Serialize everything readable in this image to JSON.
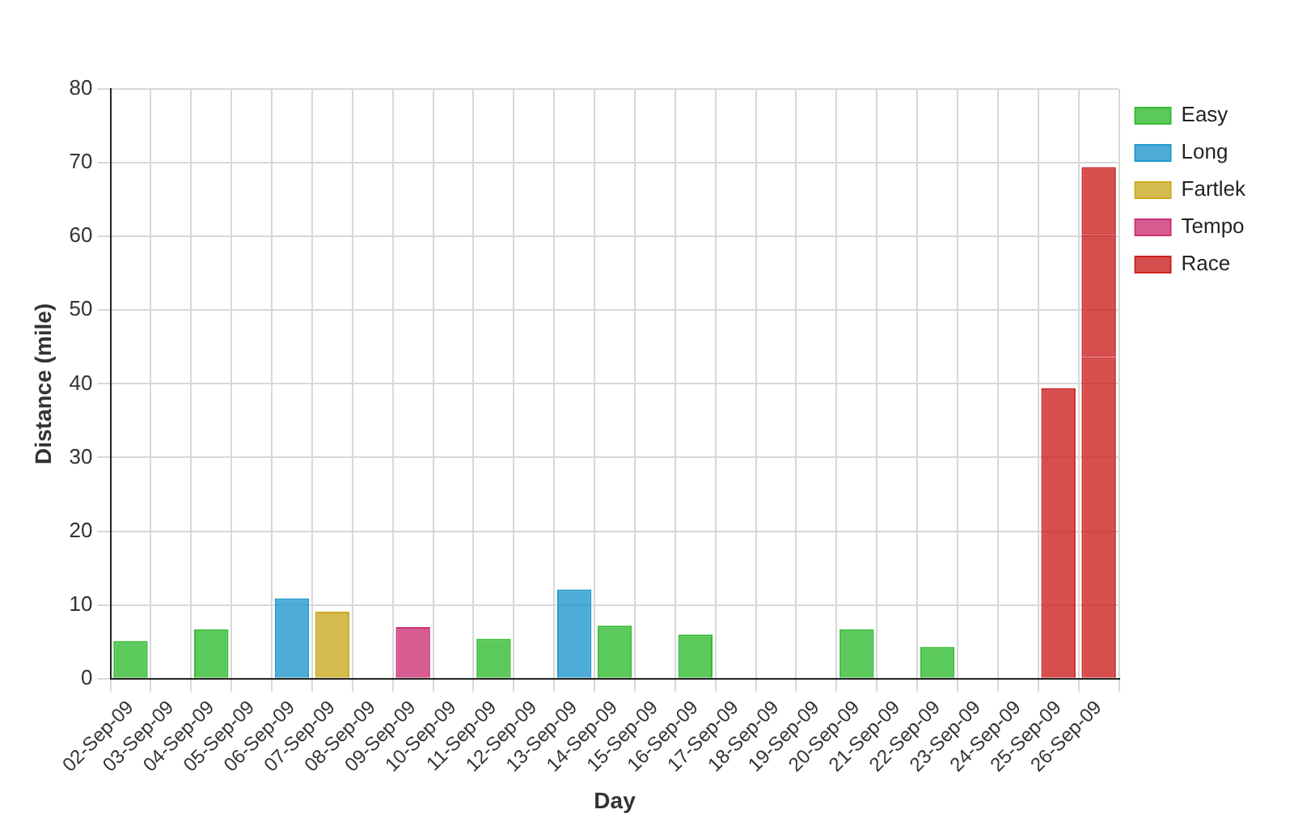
{
  "chart_data": {
    "type": "bar",
    "xlabel": "Day",
    "ylabel": "Distance (mile)",
    "categories": [
      "02-Sep-09",
      "03-Sep-09",
      "04-Sep-09",
      "05-Sep-09",
      "06-Sep-09",
      "07-Sep-09",
      "08-Sep-09",
      "09-Sep-09",
      "10-Sep-09",
      "11-Sep-09",
      "12-Sep-09",
      "13-Sep-09",
      "14-Sep-09",
      "15-Sep-09",
      "16-Sep-09",
      "17-Sep-09",
      "18-Sep-09",
      "19-Sep-09",
      "20-Sep-09",
      "21-Sep-09",
      "22-Sep-09",
      "23-Sep-09",
      "24-Sep-09",
      "25-Sep-09",
      "26-Sep-09"
    ],
    "series": [
      {
        "name": "Easy",
        "color": "#33bb33",
        "values": [
          5.1,
          null,
          6.7,
          null,
          null,
          null,
          null,
          null,
          null,
          5.4,
          null,
          null,
          7.2,
          null,
          6.0,
          null,
          null,
          null,
          6.7,
          null,
          4.3,
          null,
          null,
          null,
          null
        ]
      },
      {
        "name": "Long",
        "color": "#2299cc",
        "values": [
          null,
          null,
          null,
          null,
          10.9,
          null,
          null,
          null,
          null,
          null,
          null,
          12.1,
          null,
          null,
          null,
          null,
          null,
          null,
          null,
          null,
          null,
          null,
          null,
          null,
          null
        ]
      },
      {
        "name": "Fartlek",
        "color": "#ccaa22",
        "values": [
          null,
          null,
          null,
          null,
          null,
          9.1,
          null,
          null,
          null,
          null,
          null,
          null,
          null,
          null,
          null,
          null,
          null,
          null,
          null,
          null,
          null,
          null,
          null,
          null,
          null
        ]
      },
      {
        "name": "Tempo",
        "color": "#cc3377",
        "values": [
          null,
          null,
          null,
          null,
          null,
          null,
          null,
          7.0,
          null,
          null,
          null,
          null,
          null,
          null,
          null,
          null,
          null,
          null,
          null,
          null,
          null,
          null,
          null,
          null,
          null
        ]
      },
      {
        "name": "Race",
        "color": "#cc2222",
        "values": [
          null,
          null,
          null,
          null,
          null,
          null,
          null,
          null,
          null,
          null,
          null,
          null,
          null,
          null,
          null,
          null,
          null,
          null,
          null,
          null,
          null,
          null,
          null,
          39.4,
          43.6
        ]
      },
      {
        "color": "#cc2222",
        "values": [
          null,
          null,
          null,
          null,
          null,
          null,
          null,
          null,
          null,
          null,
          null,
          null,
          null,
          null,
          null,
          null,
          null,
          null,
          null,
          null,
          null,
          null,
          null,
          null,
          16.6
        ]
      },
      {
        "color": "#cc2222",
        "values": [
          null,
          null,
          null,
          null,
          null,
          null,
          null,
          null,
          null,
          null,
          null,
          null,
          null,
          null,
          null,
          null,
          null,
          null,
          null,
          null,
          null,
          null,
          null,
          null,
          9.2
        ]
      }
    ],
    "stacked": true,
    "ylim": [
      0,
      80
    ],
    "yticks": [
      0,
      10,
      20,
      30,
      40,
      50,
      60,
      70,
      80
    ],
    "grid": true,
    "legend": "top right"
  }
}
